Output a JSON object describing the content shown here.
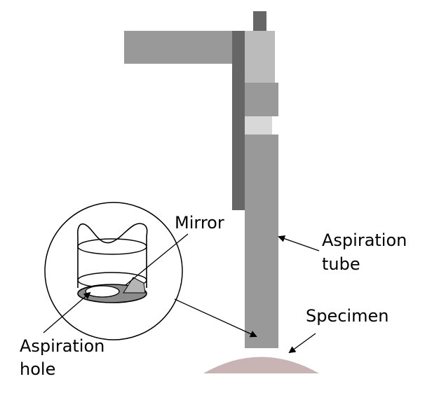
{
  "labels": {
    "mirror": "Mirror",
    "aspiration_tube": [
      "Aspiration",
      "tube"
    ],
    "specimen": "Specimen",
    "aspiration_hole": [
      "Aspiration",
      "hole"
    ]
  },
  "colors": {
    "arm": "#999999",
    "column": "#666666",
    "tube": "#999999",
    "tube_upper": "#bbbbbb",
    "tube_light": "#d8d8d8",
    "specimen": "#c8b4b4",
    "ring": "#8c8c8c",
    "mirror": "#b5b5b5"
  }
}
